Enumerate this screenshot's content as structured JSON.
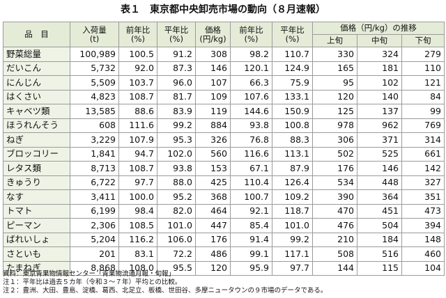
{
  "title": "表１　東京都中央卸売市場の動向（８月速報）",
  "table": {
    "headers": [
      [
        "品　目"
      ],
      [
        "入荷量",
        "(t)"
      ],
      [
        "前年比",
        "(%)"
      ],
      [
        "平年比",
        "(%)"
      ],
      [
        "価格",
        "(円/kg)"
      ],
      [
        "前年比",
        "(%)"
      ],
      [
        "平年比",
        "(%)"
      ]
    ],
    "group_header": "価格（円/kg）の推移",
    "sub_headers": [
      "上旬",
      "中旬",
      "下旬"
    ],
    "rows": [
      [
        "野菜総量",
        "100,989",
        "100.5",
        "91.2",
        "308",
        "98.2",
        "110.7",
        "330",
        "324",
        "279"
      ],
      [
        "だいこん",
        "5,732",
        "92.0",
        "87.3",
        "146",
        "120.1",
        "124.9",
        "165",
        "181",
        "110"
      ],
      [
        "にんじん",
        "5,509",
        "103.7",
        "96.0",
        "107",
        "66.3",
        "75.9",
        "95",
        "102",
        "121"
      ],
      [
        "はくさい",
        "4,823",
        "108.7",
        "81.7",
        "109",
        "107.6",
        "133.1",
        "120",
        "140",
        "84"
      ],
      [
        "キャベツ類",
        "13,585",
        "88.6",
        "83.9",
        "119",
        "144.6",
        "150.9",
        "125",
        "137",
        "99"
      ],
      [
        "ほうれんそう",
        "608",
        "111.6",
        "99.2",
        "884",
        "93.8",
        "100.8",
        "978",
        "962",
        "769"
      ],
      [
        "ねぎ",
        "3,229",
        "107.9",
        "95.3",
        "326",
        "76.8",
        "88.3",
        "306",
        "371",
        "314"
      ],
      [
        "ブロッコリー",
        "1,841",
        "94.7",
        "102.0",
        "560",
        "116.6",
        "113.1",
        "502",
        "525",
        "661"
      ],
      [
        "レタス類",
        "8,713",
        "108.7",
        "93.8",
        "153",
        "67.1",
        "87.9",
        "176",
        "146",
        "142"
      ],
      [
        "きゅうり",
        "6,722",
        "97.7",
        "88.0",
        "425",
        "110.4",
        "126.4",
        "534",
        "448",
        "327"
      ],
      [
        "なす",
        "3,411",
        "100.0",
        "95.2",
        "368",
        "100.7",
        "109.2",
        "390",
        "364",
        "351"
      ],
      [
        "トマト",
        "6,199",
        "98.4",
        "82.0",
        "464",
        "92.1",
        "118.7",
        "470",
        "451",
        "473"
      ],
      [
        "ピーマン",
        "2,306",
        "108.5",
        "101.0",
        "447",
        "85.4",
        "101.0",
        "476",
        "504",
        "394"
      ],
      [
        "ばれいしょ",
        "5,204",
        "116.2",
        "106.0",
        "176",
        "91.4",
        "99.2",
        "210",
        "184",
        "148"
      ],
      [
        "さといも",
        "201",
        "83.1",
        "72.2",
        "486",
        "99.1",
        "117.1",
        "508",
        "516",
        "460"
      ],
      [
        "たまねぎ",
        "8,868",
        "108.0",
        "95.5",
        "120",
        "95.9",
        "97.7",
        "144",
        "115",
        "104"
      ]
    ]
  },
  "notes": [
    "資料：東京青果物情報センター「青果物流通月報・旬報」",
    "注１：平年比は過去５カ年（令和３～７年）平均との比較。",
    "注２：豊洲、大田、豊島、淀橋、葛西、北足立、板橋、世田谷、多摩ニュータウンの９市場のデータである。"
  ]
}
